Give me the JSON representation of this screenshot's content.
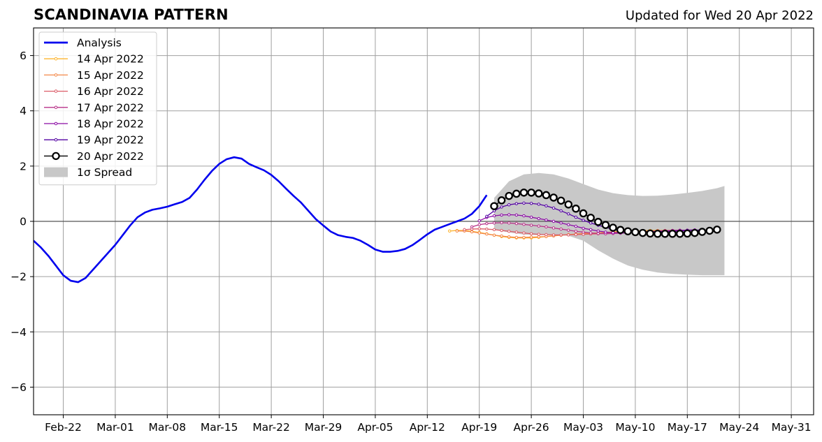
{
  "chart_data": {
    "type": "line",
    "title": "SCANDINAVIA PATTERN",
    "subtitle": "Updated for Wed 20 Apr 2022",
    "x_axis": {
      "type": "date",
      "range": [
        "2022-02-18",
        "2022-06-03"
      ],
      "tick_labels": [
        {
          "date": "2022-02-22",
          "label": "Feb-22"
        },
        {
          "date": "2022-03-01",
          "label": "Mar-01"
        },
        {
          "date": "2022-03-08",
          "label": "Mar-08"
        },
        {
          "date": "2022-03-15",
          "label": "Mar-15"
        },
        {
          "date": "2022-03-22",
          "label": "Mar-22"
        },
        {
          "date": "2022-03-29",
          "label": "Mar-29"
        },
        {
          "date": "2022-04-05",
          "label": "Apr-05"
        },
        {
          "date": "2022-04-12",
          "label": "Apr-12"
        },
        {
          "date": "2022-04-19",
          "label": "Apr-19"
        },
        {
          "date": "2022-04-26",
          "label": "Apr-26"
        },
        {
          "date": "2022-05-03",
          "label": "May-03"
        },
        {
          "date": "2022-05-10",
          "label": "May-10"
        },
        {
          "date": "2022-05-17",
          "label": "May-17"
        },
        {
          "date": "2022-05-24",
          "label": "May-24"
        },
        {
          "date": "2022-05-31",
          "label": "May-31"
        }
      ]
    },
    "y_axis": {
      "range": [
        -7,
        7
      ],
      "ticks": [
        -6,
        -4,
        -2,
        0,
        2,
        4,
        6
      ],
      "tick_labels": [
        "−6",
        "−4",
        "−2",
        "0",
        "2",
        "4",
        "6"
      ]
    },
    "grid": true,
    "zero_line": true,
    "legend_position": "top-left",
    "colors": {
      "analysis": "#0000ee",
      "spread": "#c8c8c8",
      "grid": "#a0a0a0"
    },
    "analysis": {
      "name": "Analysis",
      "color": "#0000ee",
      "points": [
        [
          "2022-02-18",
          -0.7
        ],
        [
          "2022-02-19",
          -0.95
        ],
        [
          "2022-02-20",
          -1.25
        ],
        [
          "2022-02-21",
          -1.6
        ],
        [
          "2022-02-22",
          -1.95
        ],
        [
          "2022-02-23",
          -2.15
        ],
        [
          "2022-02-24",
          -2.2
        ],
        [
          "2022-02-25",
          -2.05
        ],
        [
          "2022-02-26",
          -1.75
        ],
        [
          "2022-02-27",
          -1.45
        ],
        [
          "2022-02-28",
          -1.15
        ],
        [
          "2022-03-01",
          -0.85
        ],
        [
          "2022-03-02",
          -0.5
        ],
        [
          "2022-03-03",
          -0.15
        ],
        [
          "2022-03-04",
          0.15
        ],
        [
          "2022-03-05",
          0.32
        ],
        [
          "2022-03-06",
          0.42
        ],
        [
          "2022-03-07",
          0.47
        ],
        [
          "2022-03-08",
          0.53
        ],
        [
          "2022-03-09",
          0.62
        ],
        [
          "2022-03-10",
          0.7
        ],
        [
          "2022-03-11",
          0.85
        ],
        [
          "2022-03-12",
          1.15
        ],
        [
          "2022-03-13",
          1.5
        ],
        [
          "2022-03-14",
          1.82
        ],
        [
          "2022-03-15",
          2.08
        ],
        [
          "2022-03-16",
          2.25
        ],
        [
          "2022-03-17",
          2.32
        ],
        [
          "2022-03-18",
          2.27
        ],
        [
          "2022-03-19",
          2.08
        ],
        [
          "2022-03-20",
          1.96
        ],
        [
          "2022-03-21",
          1.85
        ],
        [
          "2022-03-22",
          1.68
        ],
        [
          "2022-03-23",
          1.45
        ],
        [
          "2022-03-24",
          1.18
        ],
        [
          "2022-03-25",
          0.92
        ],
        [
          "2022-03-26",
          0.68
        ],
        [
          "2022-03-27",
          0.38
        ],
        [
          "2022-03-28",
          0.08
        ],
        [
          "2022-03-29",
          -0.15
        ],
        [
          "2022-03-30",
          -0.37
        ],
        [
          "2022-03-31",
          -0.5
        ],
        [
          "2022-04-01",
          -0.56
        ],
        [
          "2022-04-02",
          -0.6
        ],
        [
          "2022-04-03",
          -0.7
        ],
        [
          "2022-04-04",
          -0.85
        ],
        [
          "2022-04-05",
          -1.02
        ],
        [
          "2022-04-06",
          -1.1
        ],
        [
          "2022-04-07",
          -1.1
        ],
        [
          "2022-04-08",
          -1.07
        ],
        [
          "2022-04-09",
          -1.0
        ],
        [
          "2022-04-10",
          -0.86
        ],
        [
          "2022-04-11",
          -0.67
        ],
        [
          "2022-04-12",
          -0.47
        ],
        [
          "2022-04-13",
          -0.3
        ],
        [
          "2022-04-14",
          -0.2
        ],
        [
          "2022-04-15",
          -0.1
        ],
        [
          "2022-04-16",
          0.0
        ],
        [
          "2022-04-17",
          0.1
        ],
        [
          "2022-04-18",
          0.27
        ],
        [
          "2022-04-19",
          0.55
        ],
        [
          "2022-04-20",
          0.95
        ]
      ]
    },
    "spread": {
      "name": "1σ Spread",
      "color": "#c8c8c8",
      "x": [
        "2022-04-21",
        "2022-04-23",
        "2022-04-25",
        "2022-04-27",
        "2022-04-29",
        "2022-05-01",
        "2022-05-03",
        "2022-05-05",
        "2022-05-07",
        "2022-05-09",
        "2022-05-11",
        "2022-05-13",
        "2022-05-15",
        "2022-05-17",
        "2022-05-19",
        "2022-05-21",
        "2022-05-22"
      ],
      "upper": [
        0.85,
        1.45,
        1.7,
        1.75,
        1.7,
        1.55,
        1.35,
        1.15,
        1.02,
        0.95,
        0.92,
        0.93,
        0.97,
        1.03,
        1.1,
        1.2,
        1.28
      ],
      "lower": [
        -0.3,
        -0.4,
        -0.48,
        -0.5,
        -0.5,
        -0.52,
        -0.7,
        -1.05,
        -1.35,
        -1.6,
        -1.75,
        -1.85,
        -1.9,
        -1.93,
        -1.95,
        -1.95,
        -1.95
      ]
    },
    "series": [
      {
        "name": "14 Apr 2022",
        "color": "#fdb42f",
        "start": "2022-04-15",
        "values": [
          -0.35,
          -0.33,
          -0.33,
          -0.36,
          -0.4,
          -0.45,
          -0.5,
          -0.55,
          -0.58,
          -0.6,
          -0.6,
          -0.6,
          -0.58,
          -0.55,
          -0.52,
          -0.5,
          -0.48,
          -0.47,
          -0.45,
          -0.43,
          -0.42,
          -0.4,
          -0.38,
          -0.36,
          -0.35,
          -0.35,
          -0.34,
          -0.33,
          -0.33,
          -0.33,
          -0.33,
          -0.33,
          -0.33,
          -0.33
        ]
      },
      {
        "name": "15 Apr 2022",
        "color": "#f48849",
        "start": "2022-04-16",
        "values": [
          -0.35,
          -0.35,
          -0.38,
          -0.42,
          -0.46,
          -0.5,
          -0.53,
          -0.56,
          -0.58,
          -0.58,
          -0.57,
          -0.56,
          -0.55,
          -0.53,
          -0.5,
          -0.48,
          -0.46,
          -0.44,
          -0.43,
          -0.42,
          -0.4,
          -0.4,
          -0.39,
          -0.38,
          -0.37,
          -0.36,
          -0.35,
          -0.34,
          -0.33,
          -0.33,
          -0.33,
          -0.33,
          -0.32
        ]
      },
      {
        "name": "16 Apr 2022",
        "color": "#db5c68",
        "start": "2022-04-17",
        "values": [
          -0.3,
          -0.28,
          -0.27,
          -0.28,
          -0.3,
          -0.33,
          -0.36,
          -0.39,
          -0.42,
          -0.45,
          -0.47,
          -0.48,
          -0.49,
          -0.49,
          -0.49,
          -0.48,
          -0.47,
          -0.46,
          -0.45,
          -0.43,
          -0.42,
          -0.41,
          -0.4,
          -0.39,
          -0.37,
          -0.36,
          -0.35,
          -0.34,
          -0.33,
          -0.33,
          -0.32,
          -0.32
        ]
      },
      {
        "name": "17 Apr 2022",
        "color": "#b83289",
        "start": "2022-04-18",
        "values": [
          -0.2,
          -0.12,
          -0.08,
          -0.06,
          -0.05,
          -0.06,
          -0.08,
          -0.11,
          -0.14,
          -0.17,
          -0.2,
          -0.24,
          -0.28,
          -0.32,
          -0.36,
          -0.39,
          -0.42,
          -0.44,
          -0.45,
          -0.44,
          -0.43,
          -0.41,
          -0.4,
          -0.38,
          -0.37,
          -0.35,
          -0.34,
          -0.33,
          -0.32,
          -0.32,
          -0.31
        ]
      },
      {
        "name": "18 Apr 2022",
        "color": "#8b0aa5",
        "start": "2022-04-19",
        "values": [
          0.02,
          0.14,
          0.2,
          0.23,
          0.24,
          0.23,
          0.2,
          0.15,
          0.1,
          0.05,
          0.0,
          -0.06,
          -0.12,
          -0.18,
          -0.25,
          -0.3,
          -0.35,
          -0.39,
          -0.41,
          -0.42,
          -0.42,
          -0.41,
          -0.4,
          -0.38,
          -0.37,
          -0.35,
          -0.34,
          -0.33,
          -0.32,
          -0.31
        ]
      },
      {
        "name": "19 Apr 2022",
        "color": "#5302a3",
        "start": "2022-04-20",
        "values": [
          0.18,
          0.38,
          0.52,
          0.6,
          0.64,
          0.66,
          0.65,
          0.62,
          0.56,
          0.48,
          0.38,
          0.27,
          0.15,
          0.04,
          -0.06,
          -0.14,
          -0.22,
          -0.28,
          -0.33,
          -0.36,
          -0.38,
          -0.39,
          -0.39,
          -0.38,
          -0.37,
          -0.36,
          -0.35,
          -0.33,
          -0.32,
          -0.31
        ]
      },
      {
        "name": "20 Apr 2022",
        "color": "#000000",
        "marker": "open-circle",
        "start": "2022-04-21",
        "values": [
          0.55,
          0.76,
          0.92,
          1.0,
          1.04,
          1.04,
          1.01,
          0.95,
          0.86,
          0.75,
          0.61,
          0.46,
          0.29,
          0.13,
          -0.02,
          -0.13,
          -0.23,
          -0.31,
          -0.36,
          -0.39,
          -0.42,
          -0.44,
          -0.45,
          -0.45,
          -0.45,
          -0.45,
          -0.44,
          -0.42,
          -0.38,
          -0.34,
          -0.3
        ]
      }
    ],
    "legend": [
      {
        "label": "Analysis",
        "kind": "thick-line",
        "color": "#0000ee"
      },
      {
        "label": "14 Apr 2022",
        "kind": "line-dot",
        "color": "#fdb42f"
      },
      {
        "label": "15 Apr 2022",
        "kind": "line-dot",
        "color": "#f48849"
      },
      {
        "label": "16 Apr 2022",
        "kind": "line-dot",
        "color": "#db5c68"
      },
      {
        "label": "17 Apr 2022",
        "kind": "line-dot",
        "color": "#b83289"
      },
      {
        "label": "18 Apr 2022",
        "kind": "line-dot",
        "color": "#8b0aa5"
      },
      {
        "label": "19 Apr 2022",
        "kind": "line-dot",
        "color": "#5302a3"
      },
      {
        "label": "20 Apr 2022",
        "kind": "line-circle",
        "color": "#000000"
      },
      {
        "label": "1σ Spread",
        "kind": "patch",
        "color": "#c8c8c8"
      }
    ]
  }
}
